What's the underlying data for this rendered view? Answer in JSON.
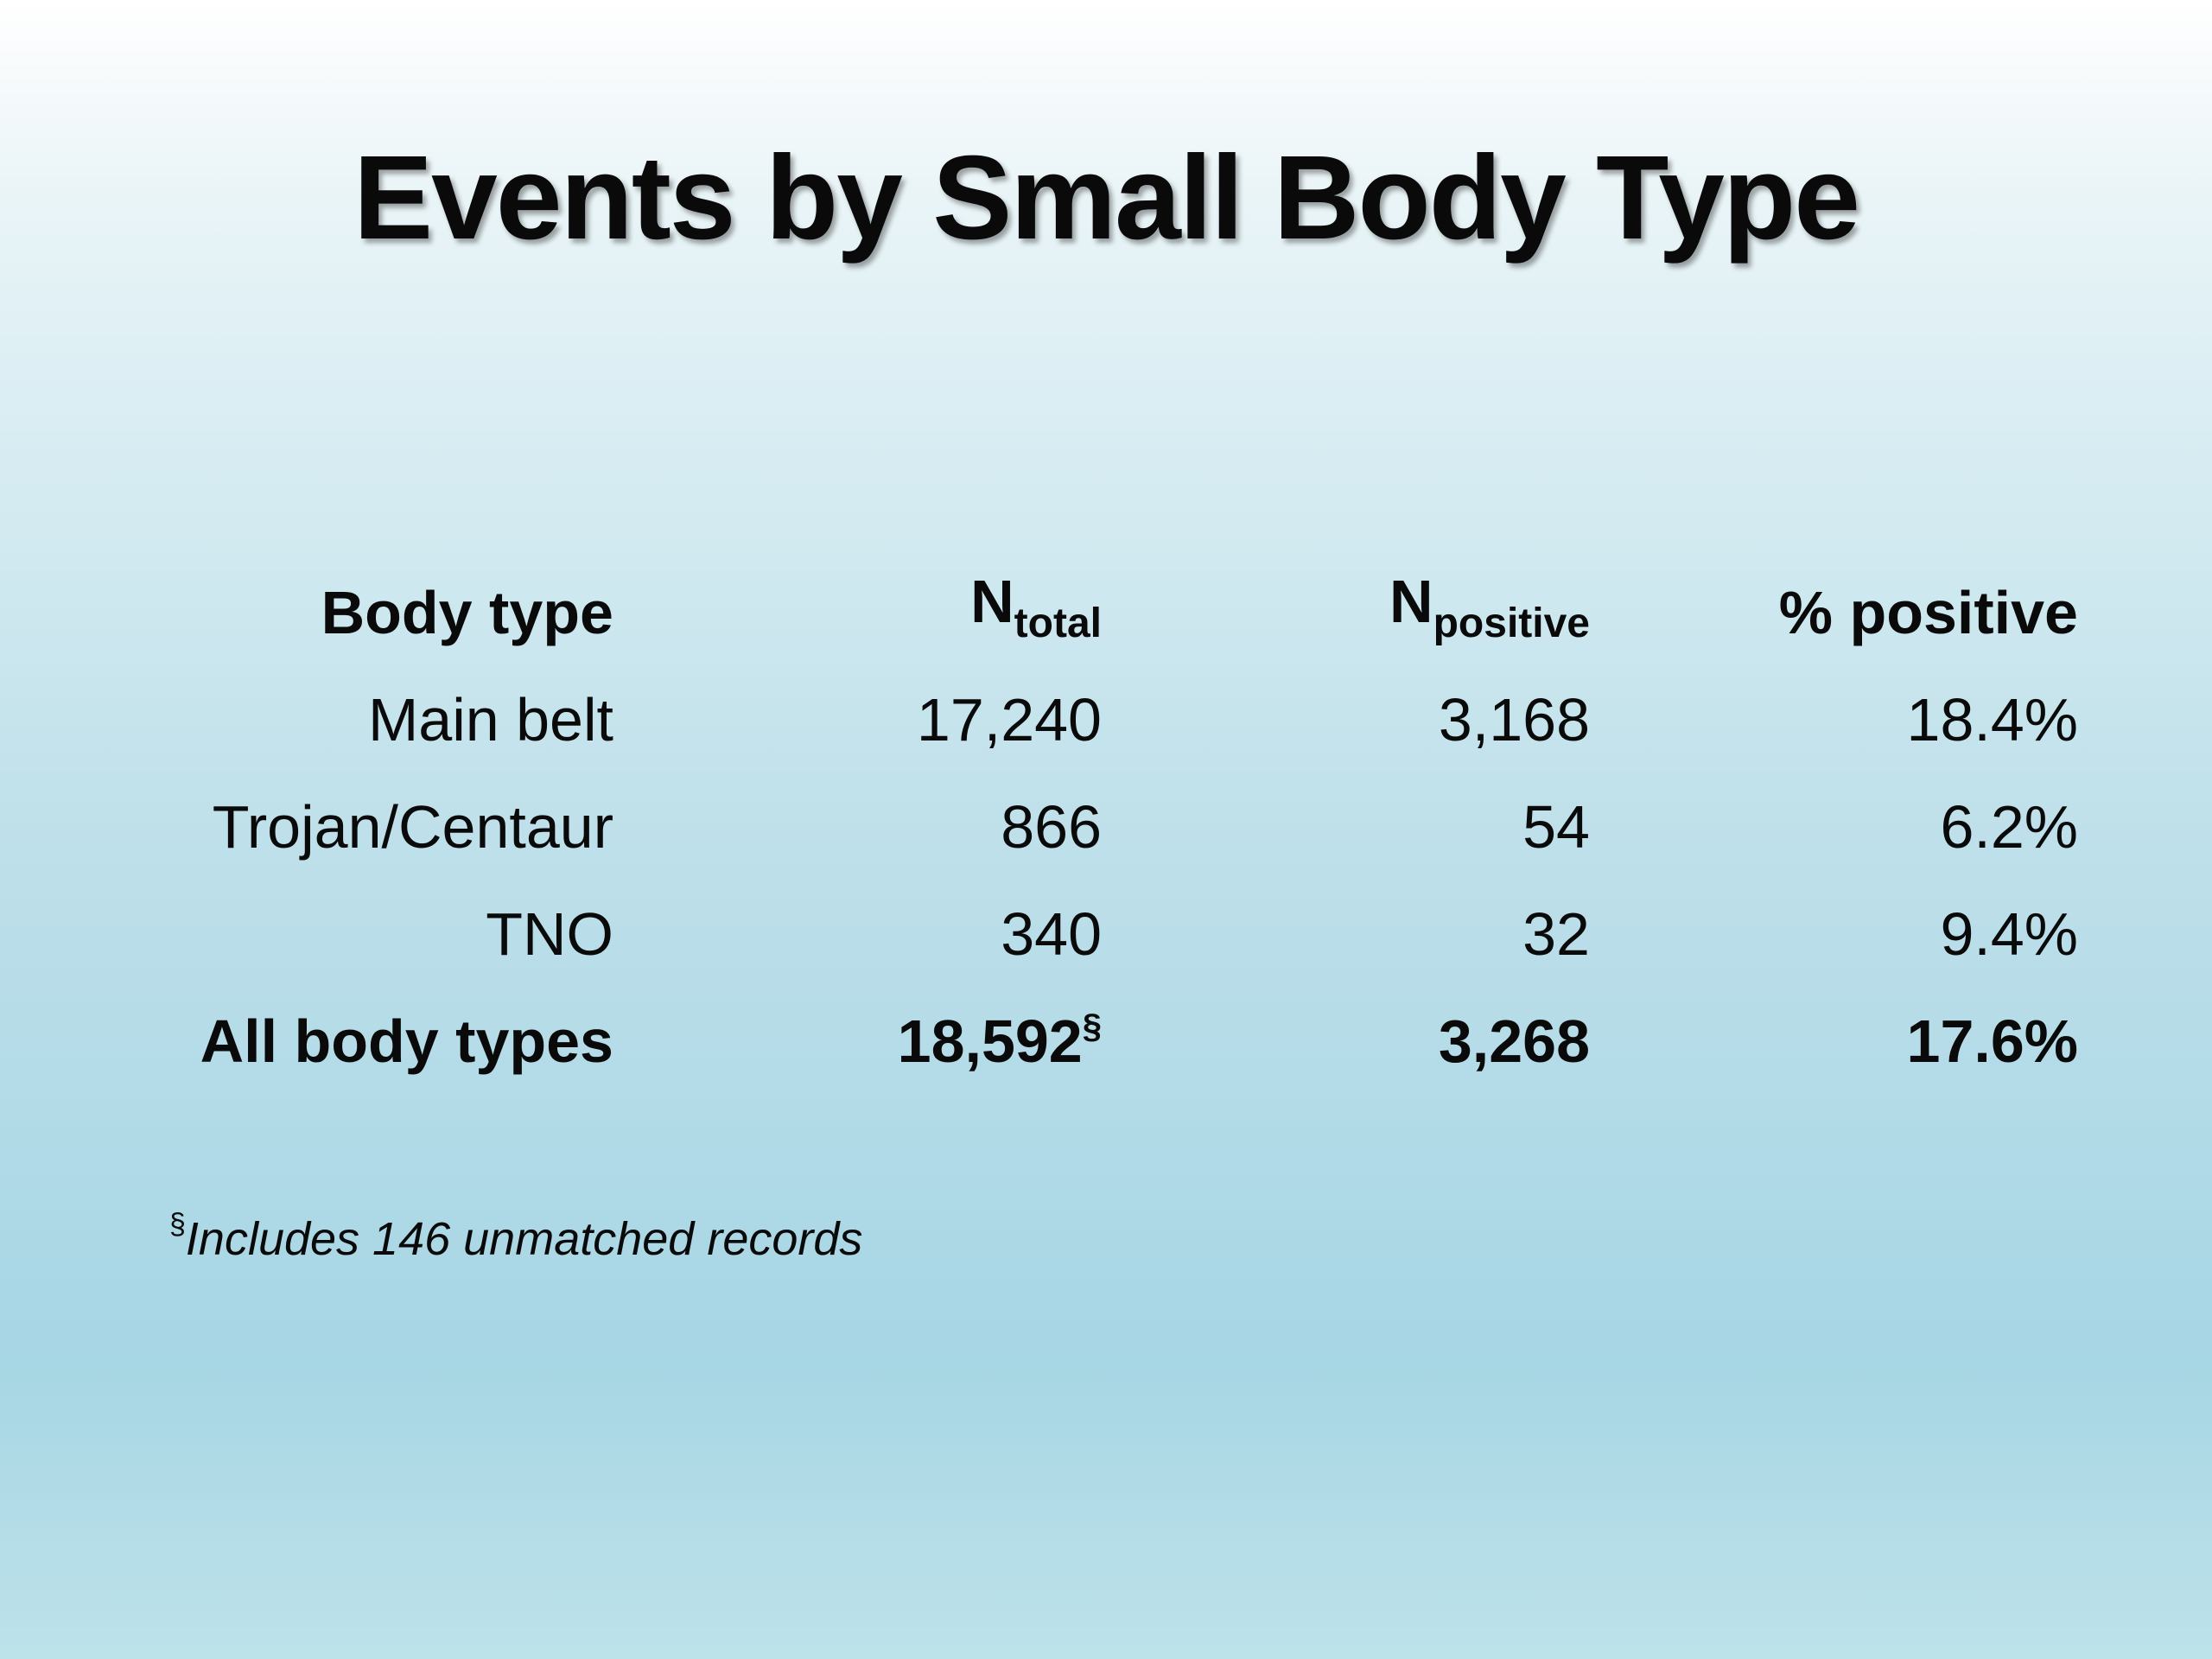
{
  "title": "Events by Small Body Type",
  "table": {
    "headers": {
      "body_type": "Body type",
      "n_total_base": "N",
      "n_total_sub": "total",
      "n_positive_base": "N",
      "n_positive_sub": "positive",
      "pct_positive": "% positive"
    },
    "rows": [
      {
        "body_type": "Main belt",
        "n_total": "17,240",
        "n_positive": "3,168",
        "pct_positive": "18.4%"
      },
      {
        "body_type": "Trojan/Centaur",
        "n_total": "866",
        "n_positive": "54",
        "pct_positive": "6.2%"
      },
      {
        "body_type": "TNO",
        "n_total": "340",
        "n_positive": "32",
        "pct_positive": "9.4%"
      }
    ],
    "total": {
      "body_type": "All body types",
      "n_total": "18,592",
      "n_total_mark": "§",
      "n_positive": "3,268",
      "pct_positive": "17.6%"
    }
  },
  "footnote": {
    "mark": "§",
    "text": "Includes 146 unmatched records"
  }
}
